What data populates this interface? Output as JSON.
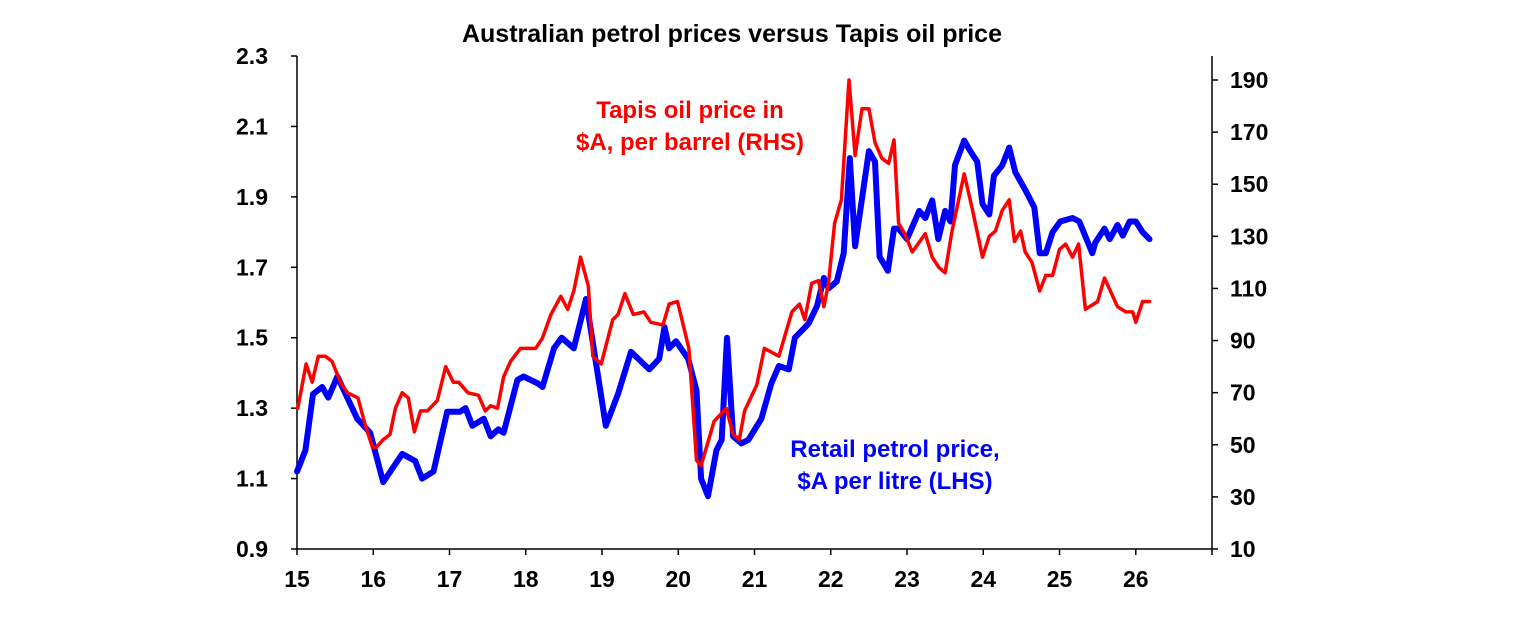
{
  "chart_data": {
    "type": "line",
    "title": "Australian petrol prices versus Tapis oil price",
    "xlabel": "",
    "x_ticks": [
      "15",
      "16",
      "17",
      "18",
      "19",
      "20",
      "21",
      "22",
      "23",
      "24",
      "25",
      "26"
    ],
    "xlim": [
      15,
      27
    ],
    "y_left": {
      "ylim": [
        0.9,
        2.3
      ],
      "ticks": [
        "0.9",
        "1.1",
        "1.3",
        "1.5",
        "1.7",
        "1.9",
        "2.1",
        "2.3"
      ]
    },
    "y_right": {
      "ylim": [
        10,
        199
      ],
      "ticks": [
        "10",
        "30",
        "50",
        "70",
        "90",
        "110",
        "130",
        "150",
        "170",
        "190"
      ]
    },
    "grid": false,
    "series": [
      {
        "name": "Retail petrol price, $A per litre (LHS)",
        "label_lines": [
          "Retail petrol price,",
          "$A per litre (LHS)"
        ],
        "axis": "left",
        "color": "#0000ff",
        "points": [
          [
            15.0,
            1.12
          ],
          [
            15.11,
            1.18
          ],
          [
            15.21,
            1.34
          ],
          [
            15.33,
            1.36
          ],
          [
            15.41,
            1.33
          ],
          [
            15.53,
            1.39
          ],
          [
            15.79,
            1.27
          ],
          [
            15.96,
            1.23
          ],
          [
            16.13,
            1.09
          ],
          [
            16.38,
            1.17
          ],
          [
            16.55,
            1.15
          ],
          [
            16.64,
            1.1
          ],
          [
            16.79,
            1.12
          ],
          [
            16.97,
            1.29
          ],
          [
            17.14,
            1.29
          ],
          [
            17.21,
            1.3
          ],
          [
            17.3,
            1.25
          ],
          [
            17.45,
            1.27
          ],
          [
            17.54,
            1.22
          ],
          [
            17.64,
            1.24
          ],
          [
            17.71,
            1.23
          ],
          [
            17.89,
            1.38
          ],
          [
            17.97,
            1.39
          ],
          [
            18.16,
            1.37
          ],
          [
            18.22,
            1.36
          ],
          [
            18.37,
            1.47
          ],
          [
            18.47,
            1.5
          ],
          [
            18.63,
            1.47
          ],
          [
            18.79,
            1.61
          ],
          [
            19.05,
            1.25
          ],
          [
            19.21,
            1.34
          ],
          [
            19.38,
            1.46
          ],
          [
            19.62,
            1.41
          ],
          [
            19.75,
            1.44
          ],
          [
            19.82,
            1.53
          ],
          [
            19.88,
            1.47
          ],
          [
            19.97,
            1.49
          ],
          [
            20.13,
            1.44
          ],
          [
            20.24,
            1.35
          ],
          [
            20.3,
            1.1
          ],
          [
            20.39,
            1.05
          ],
          [
            20.5,
            1.18
          ],
          [
            20.57,
            1.21
          ],
          [
            20.64,
            1.5
          ],
          [
            20.72,
            1.22
          ],
          [
            20.83,
            1.2
          ],
          [
            20.92,
            1.21
          ],
          [
            21.09,
            1.27
          ],
          [
            21.22,
            1.37
          ],
          [
            21.32,
            1.42
          ],
          [
            21.45,
            1.41
          ],
          [
            21.53,
            1.5
          ],
          [
            21.71,
            1.54
          ],
          [
            21.82,
            1.59
          ],
          [
            21.91,
            1.67
          ],
          [
            21.97,
            1.64
          ],
          [
            22.08,
            1.66
          ],
          [
            22.17,
            1.74
          ],
          [
            22.25,
            2.01
          ],
          [
            22.32,
            1.76
          ],
          [
            22.5,
            2.03
          ],
          [
            22.58,
            2.0
          ],
          [
            22.64,
            1.73
          ],
          [
            22.75,
            1.69
          ],
          [
            22.83,
            1.81
          ],
          [
            22.89,
            1.81
          ],
          [
            23.0,
            1.78
          ],
          [
            23.16,
            1.86
          ],
          [
            23.24,
            1.84
          ],
          [
            23.33,
            1.89
          ],
          [
            23.41,
            1.78
          ],
          [
            23.5,
            1.86
          ],
          [
            23.57,
            1.83
          ],
          [
            23.63,
            1.99
          ],
          [
            23.75,
            2.06
          ],
          [
            23.83,
            2.03
          ],
          [
            23.92,
            2.0
          ],
          [
            23.99,
            1.88
          ],
          [
            24.08,
            1.85
          ],
          [
            24.14,
            1.96
          ],
          [
            24.25,
            1.99
          ],
          [
            24.34,
            2.04
          ],
          [
            24.42,
            1.97
          ],
          [
            24.55,
            1.92
          ],
          [
            24.67,
            1.87
          ],
          [
            24.74,
            1.74
          ],
          [
            24.82,
            1.74
          ],
          [
            24.91,
            1.8
          ],
          [
            25.01,
            1.83
          ],
          [
            25.17,
            1.84
          ],
          [
            25.26,
            1.83
          ],
          [
            25.43,
            1.74
          ],
          [
            25.47,
            1.77
          ],
          [
            25.59,
            1.81
          ],
          [
            25.66,
            1.78
          ],
          [
            25.76,
            1.82
          ],
          [
            25.83,
            1.79
          ],
          [
            25.92,
            1.83
          ],
          [
            26.0,
            1.83
          ],
          [
            26.09,
            1.8
          ],
          [
            26.18,
            1.78
          ]
        ]
      },
      {
        "name": "Tapis oil price in $A, per barrel (RHS)",
        "label_lines": [
          "Tapis oil price in",
          "$A, per barrel (RHS)"
        ],
        "axis": "right",
        "color": "#ff0000",
        "points": [
          [
            15.01,
            64
          ],
          [
            15.12,
            81
          ],
          [
            15.2,
            74
          ],
          [
            15.28,
            84
          ],
          [
            15.37,
            84
          ],
          [
            15.46,
            82
          ],
          [
            15.57,
            74
          ],
          [
            15.66,
            70
          ],
          [
            15.8,
            68
          ],
          [
            15.89,
            58
          ],
          [
            15.99,
            49
          ],
          [
            16.04,
            49
          ],
          [
            16.13,
            52
          ],
          [
            16.22,
            54
          ],
          [
            16.29,
            64
          ],
          [
            16.38,
            70
          ],
          [
            16.46,
            68
          ],
          [
            16.54,
            55
          ],
          [
            16.62,
            63
          ],
          [
            16.71,
            63
          ],
          [
            16.84,
            67
          ],
          [
            16.95,
            80
          ],
          [
            17.05,
            74
          ],
          [
            17.12,
            74
          ],
          [
            17.24,
            70
          ],
          [
            17.38,
            69
          ],
          [
            17.47,
            63
          ],
          [
            17.54,
            65
          ],
          [
            17.63,
            64
          ],
          [
            17.71,
            76
          ],
          [
            17.8,
            82
          ],
          [
            17.93,
            87
          ],
          [
            18.03,
            87
          ],
          [
            18.13,
            87
          ],
          [
            18.22,
            91
          ],
          [
            18.33,
            100
          ],
          [
            18.46,
            107
          ],
          [
            18.55,
            102
          ],
          [
            18.63,
            109
          ],
          [
            18.72,
            122
          ],
          [
            18.82,
            111
          ],
          [
            18.88,
            84
          ],
          [
            18.99,
            81
          ],
          [
            19.14,
            98
          ],
          [
            19.21,
            100
          ],
          [
            19.3,
            108
          ],
          [
            19.41,
            100
          ],
          [
            19.55,
            101
          ],
          [
            19.64,
            97
          ],
          [
            19.8,
            96
          ],
          [
            19.88,
            104
          ],
          [
            19.99,
            105
          ],
          [
            20.14,
            87
          ],
          [
            20.24,
            44
          ],
          [
            20.3,
            42
          ],
          [
            20.47,
            59
          ],
          [
            20.63,
            64
          ],
          [
            20.72,
            54
          ],
          [
            20.8,
            52
          ],
          [
            20.87,
            63
          ],
          [
            21.03,
            73
          ],
          [
            21.13,
            87
          ],
          [
            21.32,
            84
          ],
          [
            21.49,
            101
          ],
          [
            21.59,
            104
          ],
          [
            21.66,
            98
          ],
          [
            21.75,
            112
          ],
          [
            21.84,
            113
          ],
          [
            21.91,
            103
          ],
          [
            21.97,
            112
          ],
          [
            22.05,
            135
          ],
          [
            22.14,
            144
          ],
          [
            22.24,
            190
          ],
          [
            22.32,
            161
          ],
          [
            22.41,
            179
          ],
          [
            22.5,
            179
          ],
          [
            22.58,
            166
          ],
          [
            22.67,
            160
          ],
          [
            22.76,
            158
          ],
          [
            22.83,
            167
          ],
          [
            22.89,
            135
          ],
          [
            22.97,
            131
          ],
          [
            23.07,
            124
          ],
          [
            23.24,
            131
          ],
          [
            23.33,
            122
          ],
          [
            23.42,
            118
          ],
          [
            23.5,
            116
          ],
          [
            23.59,
            132
          ],
          [
            23.75,
            154
          ],
          [
            23.86,
            140
          ],
          [
            23.99,
            122
          ],
          [
            24.08,
            130
          ],
          [
            24.16,
            132
          ],
          [
            24.25,
            140
          ],
          [
            24.34,
            144
          ],
          [
            24.41,
            128
          ],
          [
            24.49,
            132
          ],
          [
            24.55,
            124
          ],
          [
            24.64,
            120
          ],
          [
            24.74,
            109
          ],
          [
            24.82,
            115
          ],
          [
            24.91,
            115
          ],
          [
            25.0,
            125
          ],
          [
            25.08,
            127
          ],
          [
            25.17,
            122
          ],
          [
            25.25,
            127
          ],
          [
            25.34,
            102
          ],
          [
            25.5,
            105
          ],
          [
            25.59,
            114
          ],
          [
            25.76,
            103
          ],
          [
            25.87,
            101
          ],
          [
            25.96,
            101
          ],
          [
            26.0,
            97
          ],
          [
            26.09,
            105
          ],
          [
            26.18,
            105
          ]
        ]
      }
    ]
  }
}
